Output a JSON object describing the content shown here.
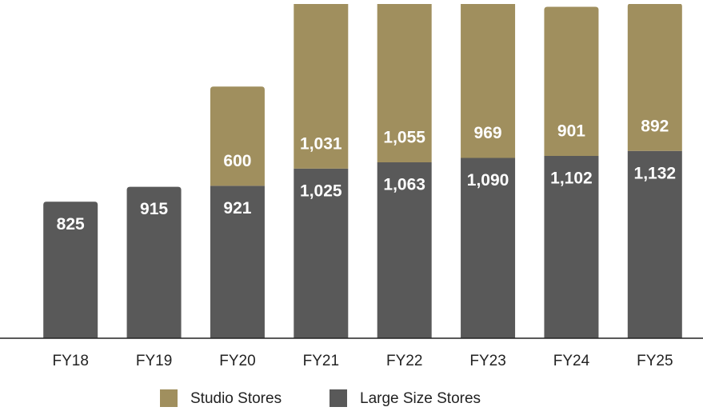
{
  "chart_data": {
    "type": "stacked_bar",
    "categories": [
      "FY18",
      "FY19",
      "FY20",
      "FY21",
      "FY22",
      "FY23",
      "FY24",
      "FY25"
    ],
    "series": [
      {
        "name": "Large Size Stores",
        "color": "#595959",
        "values": [
          825,
          915,
          921,
          1025,
          1063,
          1090,
          1102,
          1132
        ],
        "value_labels": [
          "825",
          "915",
          "921",
          "1,025",
          "1,063",
          "1,090",
          "1,102",
          "1,132"
        ]
      },
      {
        "name": "Studio Stores",
        "color": "#a08f5e",
        "values": [
          null,
          null,
          600,
          1031,
          1055,
          969,
          901,
          892
        ],
        "value_labels": [
          null,
          null,
          "600",
          "1,031",
          "1,055",
          "969",
          "901",
          "892"
        ]
      }
    ],
    "legend_order": [
      1,
      0
    ],
    "ylim": [
      0,
      2020
    ]
  }
}
